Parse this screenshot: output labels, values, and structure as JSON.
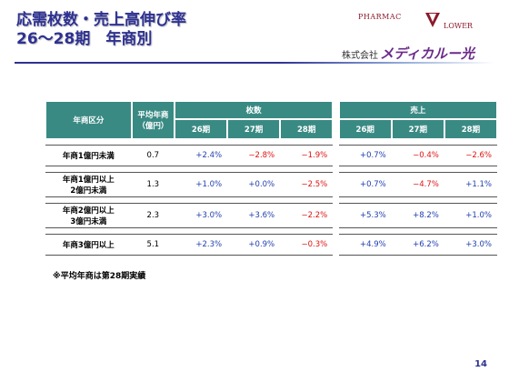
{
  "title": {
    "line1": "応需枚数・売上高伸び率",
    "line2": "26～28期　年商別"
  },
  "logo": {
    "word1": "PHARMAC",
    "word2": "LOWER",
    "company_prefix": "株式会社",
    "company_brand": "メディカルー光",
    "accent_color": "#8a1a2a"
  },
  "table": {
    "header": {
      "category": "年商区分",
      "avg_line1": "平均年商",
      "avg_line2": "（億円）",
      "group_sheets": "枚数",
      "group_sales": "売上",
      "periods": [
        "26期",
        "27期",
        "28期"
      ]
    },
    "rows": [
      {
        "label_lines": [
          "年商1億円未満"
        ],
        "avg": "0.7",
        "sheets": [
          "+2.4%",
          "−2.8%",
          "−1.9%"
        ],
        "sales": [
          "+0.7%",
          "−0.4%",
          "−2.6%"
        ]
      },
      {
        "label_lines": [
          "年商1億円以上",
          "2億円未満"
        ],
        "avg": "1.3",
        "sheets": [
          "+1.0%",
          "+0.0%",
          "−2.5%"
        ],
        "sales": [
          "+0.7%",
          "−4.7%",
          "+1.1%"
        ]
      },
      {
        "label_lines": [
          "年商2億円以上",
          "3億円未満"
        ],
        "avg": "2.3",
        "sheets": [
          "+3.0%",
          "+3.6%",
          "−2.2%"
        ],
        "sales": [
          "+5.3%",
          "+8.2%",
          "+1.0%"
        ]
      },
      {
        "label_lines": [
          "年商3億円以上"
        ],
        "avg": "5.1",
        "sheets": [
          "+2.3%",
          "+0.9%",
          "−0.3%"
        ],
        "sales": [
          "+4.9%",
          "+6.2%",
          "+3.0%"
        ]
      }
    ]
  },
  "footnote": "※平均年商は第28期実績",
  "page_number": "14",
  "colors": {
    "title": "#2e3192",
    "header_bg": "#3a8a84",
    "positive": "#1f3fb0",
    "negative": "#e01010"
  }
}
